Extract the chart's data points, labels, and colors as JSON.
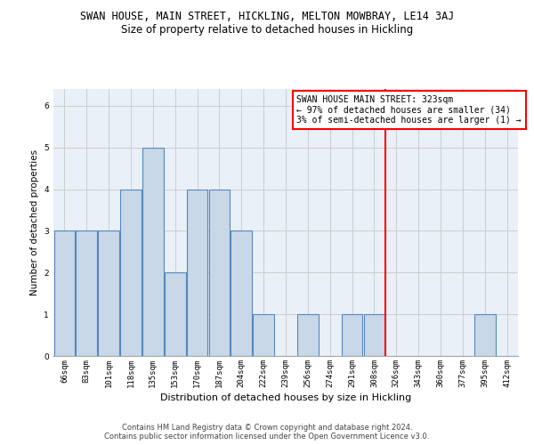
{
  "title": "SWAN HOUSE, MAIN STREET, HICKLING, MELTON MOWBRAY, LE14 3AJ",
  "subtitle": "Size of property relative to detached houses in Hickling",
  "xlabel": "Distribution of detached houses by size in Hickling",
  "ylabel": "Number of detached properties",
  "footer_line1": "Contains HM Land Registry data © Crown copyright and database right 2024.",
  "footer_line2": "Contains public sector information licensed under the Open Government Licence v3.0.",
  "categories": [
    "66sqm",
    "83sqm",
    "101sqm",
    "118sqm",
    "135sqm",
    "153sqm",
    "170sqm",
    "187sqm",
    "204sqm",
    "222sqm",
    "239sqm",
    "256sqm",
    "274sqm",
    "291sqm",
    "308sqm",
    "326sqm",
    "343sqm",
    "360sqm",
    "377sqm",
    "395sqm",
    "412sqm"
  ],
  "values": [
    3,
    3,
    3,
    4,
    5,
    2,
    4,
    4,
    3,
    1,
    0,
    1,
    0,
    1,
    1,
    0,
    0,
    0,
    0,
    1,
    0
  ],
  "bar_color": "#c8d8e8",
  "bar_edge_color": "#5588bb",
  "bar_linewidth": 0.8,
  "vline_color": "red",
  "vline_linewidth": 1.5,
  "vline_index": 14.5,
  "annotation_text_line1": "SWAN HOUSE MAIN STREET: 323sqm",
  "annotation_text_line2": "← 97% of detached houses are smaller (34)",
  "annotation_text_line3": "3% of semi-detached houses are larger (1) →",
  "annotation_fontsize": 7,
  "annotation_box_color": "white",
  "annotation_box_edge_color": "red",
  "ylim": [
    0,
    6.4
  ],
  "yticks": [
    0,
    1,
    2,
    3,
    4,
    5,
    6
  ],
  "grid_color": "#cccccc",
  "bg_color": "#eaf0f8",
  "title_fontsize": 8.5,
  "subtitle_fontsize": 8.5,
  "ylabel_fontsize": 7.5,
  "xlabel_fontsize": 8,
  "tick_fontsize": 6.5,
  "footer_fontsize": 6
}
